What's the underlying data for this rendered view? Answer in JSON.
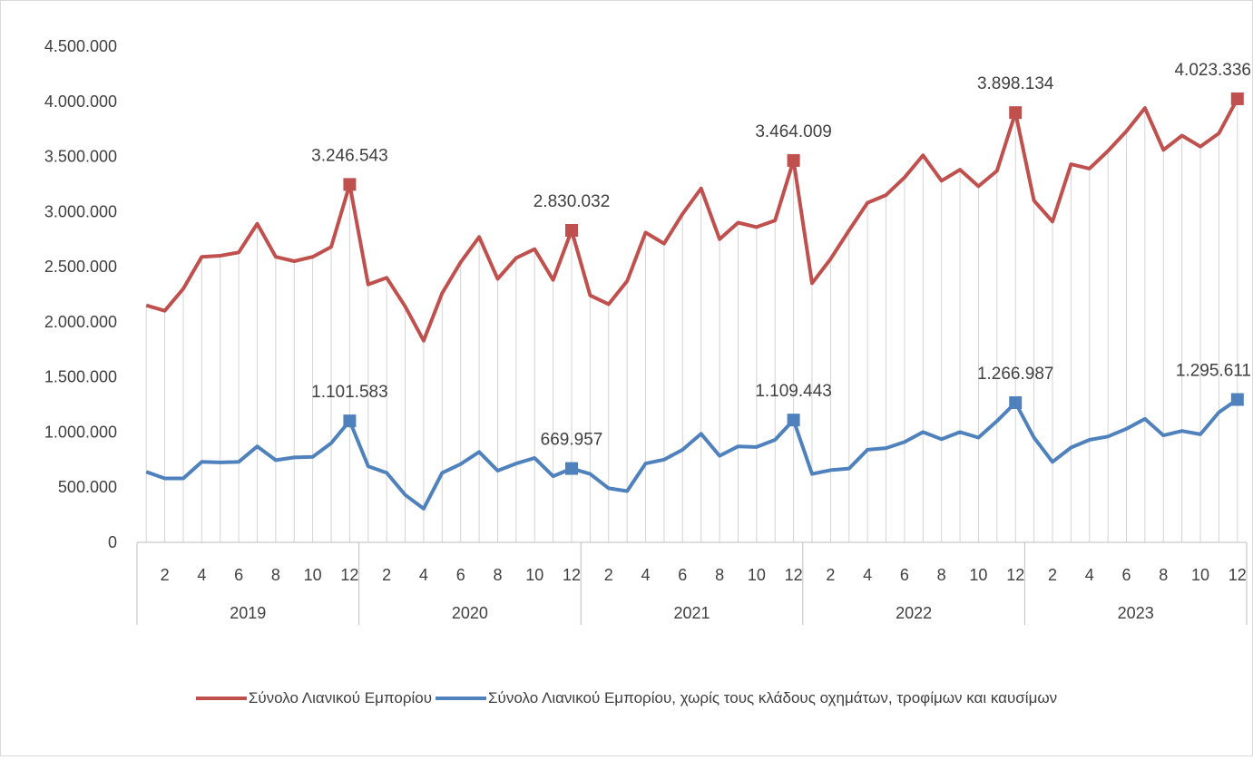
{
  "chart_data": {
    "type": "line",
    "years": [
      "2019",
      "2020",
      "2021",
      "2022",
      "2023"
    ],
    "month_tick_labels": [
      "2",
      "4",
      "6",
      "8",
      "10",
      "12"
    ],
    "y_ticks": [
      "0",
      "500.000",
      "1.000.000",
      "1.500.000",
      "2.000.000",
      "2.500.000",
      "3.000.000",
      "3.500.000",
      "4.000.000",
      "4.500.000"
    ],
    "ylim": [
      0,
      4500000
    ],
    "drop_lines": true,
    "legend_position": "bottom",
    "series": [
      {
        "name": "Σύνολο Λιανικού Εμπορίου",
        "color": "#c0504d",
        "values": [
          2150000,
          2100000,
          2300000,
          2590000,
          2600000,
          2630000,
          2890000,
          2590000,
          2550000,
          2590000,
          2680000,
          3246543,
          2340000,
          2400000,
          2140000,
          1830000,
          2260000,
          2540000,
          2770000,
          2390000,
          2580000,
          2660000,
          2380000,
          2830032,
          2240000,
          2160000,
          2370000,
          2810000,
          2710000,
          2980000,
          3210000,
          2750000,
          2900000,
          2860000,
          2920000,
          3464009,
          2350000,
          2570000,
          2830000,
          3080000,
          3150000,
          3310000,
          3510000,
          3280000,
          3380000,
          3230000,
          3370000,
          3898134,
          3100000,
          2910000,
          3430000,
          3390000,
          3550000,
          3730000,
          3940000,
          3560000,
          3690000,
          3590000,
          3710000,
          4023336
        ],
        "labels": [
          {
            "index": 11,
            "text": "3.246.543"
          },
          {
            "index": 23,
            "text": "2.830.032"
          },
          {
            "index": 35,
            "text": "3.464.009"
          },
          {
            "index": 47,
            "text": "3.898.134"
          },
          {
            "index": 59,
            "text": "4.023.336"
          }
        ]
      },
      {
        "name": "Σύνολο Λιανικού Εμπορίου, χωρίς τους κλάδους οχημάτων, τροφίμων και καυσίμων",
        "color": "#4f81bd",
        "values": [
          640000,
          580000,
          580000,
          730000,
          725000,
          730000,
          870000,
          745000,
          770000,
          775000,
          900000,
          1101583,
          690000,
          630000,
          430000,
          305000,
          630000,
          710000,
          820000,
          650000,
          715000,
          765000,
          600000,
          669957,
          620000,
          490000,
          465000,
          715000,
          750000,
          840000,
          985000,
          785000,
          870000,
          865000,
          930000,
          1109443,
          620000,
          655000,
          670000,
          840000,
          855000,
          910000,
          1000000,
          935000,
          1000000,
          950000,
          1100000,
          1266987,
          950000,
          730000,
          860000,
          930000,
          960000,
          1030000,
          1120000,
          970000,
          1010000,
          980000,
          1180000,
          1295611
        ],
        "labels": [
          {
            "index": 11,
            "text": "1.101.583"
          },
          {
            "index": 23,
            "text": "669.957"
          },
          {
            "index": 35,
            "text": "1.109.443"
          },
          {
            "index": 47,
            "text": "1.266.987"
          },
          {
            "index": 59,
            "text": "1.295.611"
          }
        ]
      }
    ]
  }
}
